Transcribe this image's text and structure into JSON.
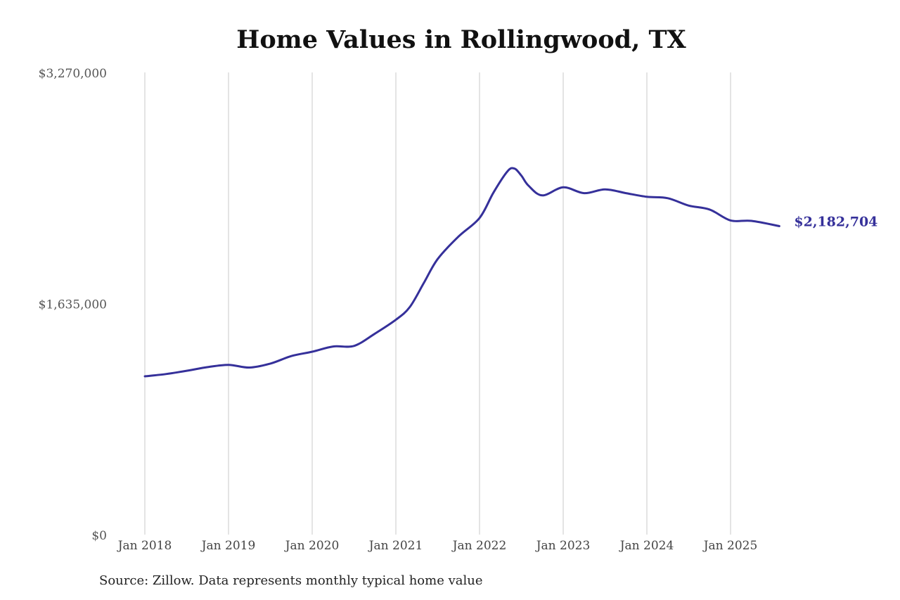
{
  "chart_data": {
    "type": "line",
    "title": "Home Values in Rollingwood, TX",
    "xlabel": "",
    "ylabel": "",
    "y_ticks": [
      "$0",
      "$1,635,000",
      "$3,270,000"
    ],
    "ylim": [
      0,
      3270000
    ],
    "x_ticks": [
      "Jan 2018",
      "Jan 2019",
      "Jan 2020",
      "Jan 2021",
      "Jan 2022",
      "Jan 2023",
      "Jan 2024",
      "Jan 2025"
    ],
    "xlim": [
      "2018-01",
      "2025-08"
    ],
    "grid": "vertical",
    "line_color": "#35309a",
    "end_label": "$2,182,704",
    "series": [
      {
        "points": [
          [
            "2018-01",
            1120000
          ],
          [
            "2018-04",
            1136000
          ],
          [
            "2018-07",
            1159000
          ],
          [
            "2018-10",
            1185000
          ],
          [
            "2019-01",
            1201000
          ],
          [
            "2019-04",
            1182000
          ],
          [
            "2019-07",
            1210000
          ],
          [
            "2019-10",
            1263000
          ],
          [
            "2020-01",
            1294000
          ],
          [
            "2020-04",
            1331000
          ],
          [
            "2020-07",
            1335000
          ],
          [
            "2020-10",
            1422000
          ],
          [
            "2021-01",
            1520000
          ],
          [
            "2021-03",
            1610000
          ],
          [
            "2021-05",
            1780000
          ],
          [
            "2021-07",
            1950000
          ],
          [
            "2021-10",
            2110000
          ],
          [
            "2022-01",
            2240000
          ],
          [
            "2022-03",
            2420000
          ],
          [
            "2022-05",
            2570000
          ],
          [
            "2022-06",
            2590000
          ],
          [
            "2022-07",
            2540000
          ],
          [
            "2022-08",
            2470000
          ],
          [
            "2022-10",
            2400000
          ],
          [
            "2023-01",
            2457000
          ],
          [
            "2023-04",
            2416000
          ],
          [
            "2023-07",
            2443000
          ],
          [
            "2023-10",
            2416000
          ],
          [
            "2024-01",
            2390000
          ],
          [
            "2024-04",
            2380000
          ],
          [
            "2024-07",
            2328000
          ],
          [
            "2024-10",
            2300000
          ],
          [
            "2025-01",
            2223000
          ],
          [
            "2025-04",
            2220000
          ],
          [
            "2025-08",
            2182704
          ]
        ]
      }
    ]
  },
  "source": "Source: Zillow. Data represents monthly typical home value"
}
